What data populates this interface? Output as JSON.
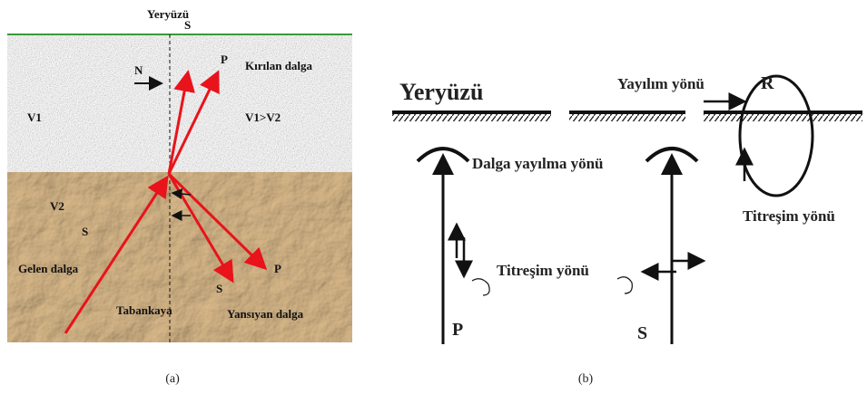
{
  "panel_a": {
    "title": "Yeryüzü",
    "labels": [
      "S",
      "P",
      "Kırılan dalga",
      "N",
      "V1",
      "V1>V2",
      "V2",
      "S",
      "Gelen dalga",
      "P",
      "S",
      "Tabankaya",
      "Yansıyan dalga"
    ]
  },
  "panel_b": {
    "surface": "Yeryüzü",
    "labels": [
      "Yayılım yönü",
      "R",
      "Dalga yayılma yönü",
      "Titreşim yönü",
      "Titreşim yönü",
      "P",
      "S"
    ]
  },
  "captions": [
    "(a)",
    "(b)"
  ]
}
